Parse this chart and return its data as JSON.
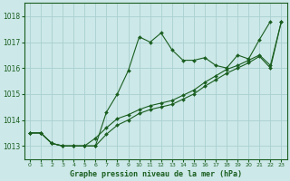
{
  "title": "Graphe pression niveau de la mer (hPa)",
  "bg_color": "#cce8e8",
  "grid_color": "#aacfcf",
  "line_color": "#1a5e20",
  "ylim": [
    1012.5,
    1018.5
  ],
  "xlim": [
    -0.5,
    23.5
  ],
  "yticks": [
    1013,
    1014,
    1015,
    1016,
    1017,
    1018
  ],
  "xticks": [
    0,
    1,
    2,
    3,
    4,
    5,
    6,
    7,
    8,
    9,
    10,
    11,
    12,
    13,
    14,
    15,
    16,
    17,
    18,
    19,
    20,
    21,
    22,
    23
  ],
  "line1_x": [
    0,
    1,
    2,
    3,
    4,
    5,
    6,
    7,
    8,
    9,
    10,
    11,
    12,
    13,
    14,
    15,
    16,
    17,
    18,
    19,
    20,
    21,
    22
  ],
  "line1_y": [
    1013.5,
    1013.5,
    1013.1,
    1013.0,
    1013.0,
    1013.0,
    1013.0,
    1014.3,
    1015.0,
    1015.9,
    1017.2,
    1017.0,
    1017.35,
    1016.7,
    1016.3,
    1016.3,
    1016.4,
    1016.1,
    1016.0,
    1016.5,
    1016.35,
    1017.1,
    1017.8
  ],
  "line2_x": [
    0,
    1,
    2,
    3,
    4,
    5,
    6,
    7,
    8,
    9,
    10,
    11,
    12,
    13,
    14,
    15,
    16,
    17,
    18,
    19,
    20,
    21,
    22,
    23
  ],
  "line2_y": [
    1013.5,
    1013.5,
    1013.1,
    1013.0,
    1013.0,
    1013.0,
    1013.3,
    1013.7,
    1014.05,
    1014.2,
    1014.4,
    1014.55,
    1014.65,
    1014.75,
    1014.95,
    1015.15,
    1015.45,
    1015.7,
    1015.95,
    1016.1,
    1016.3,
    1016.5,
    1016.1,
    1017.8
  ],
  "line3_x": [
    0,
    1,
    2,
    3,
    4,
    5,
    6,
    7,
    8,
    9,
    10,
    11,
    12,
    13,
    14,
    15,
    16,
    17,
    18,
    19,
    20,
    21,
    22,
    23
  ],
  "line3_y": [
    1013.5,
    1013.5,
    1013.1,
    1013.0,
    1013.0,
    1013.0,
    1013.0,
    1013.45,
    1013.8,
    1014.0,
    1014.25,
    1014.4,
    1014.5,
    1014.6,
    1014.8,
    1015.0,
    1015.3,
    1015.55,
    1015.8,
    1016.0,
    1016.2,
    1016.45,
    1016.0,
    1017.8
  ]
}
